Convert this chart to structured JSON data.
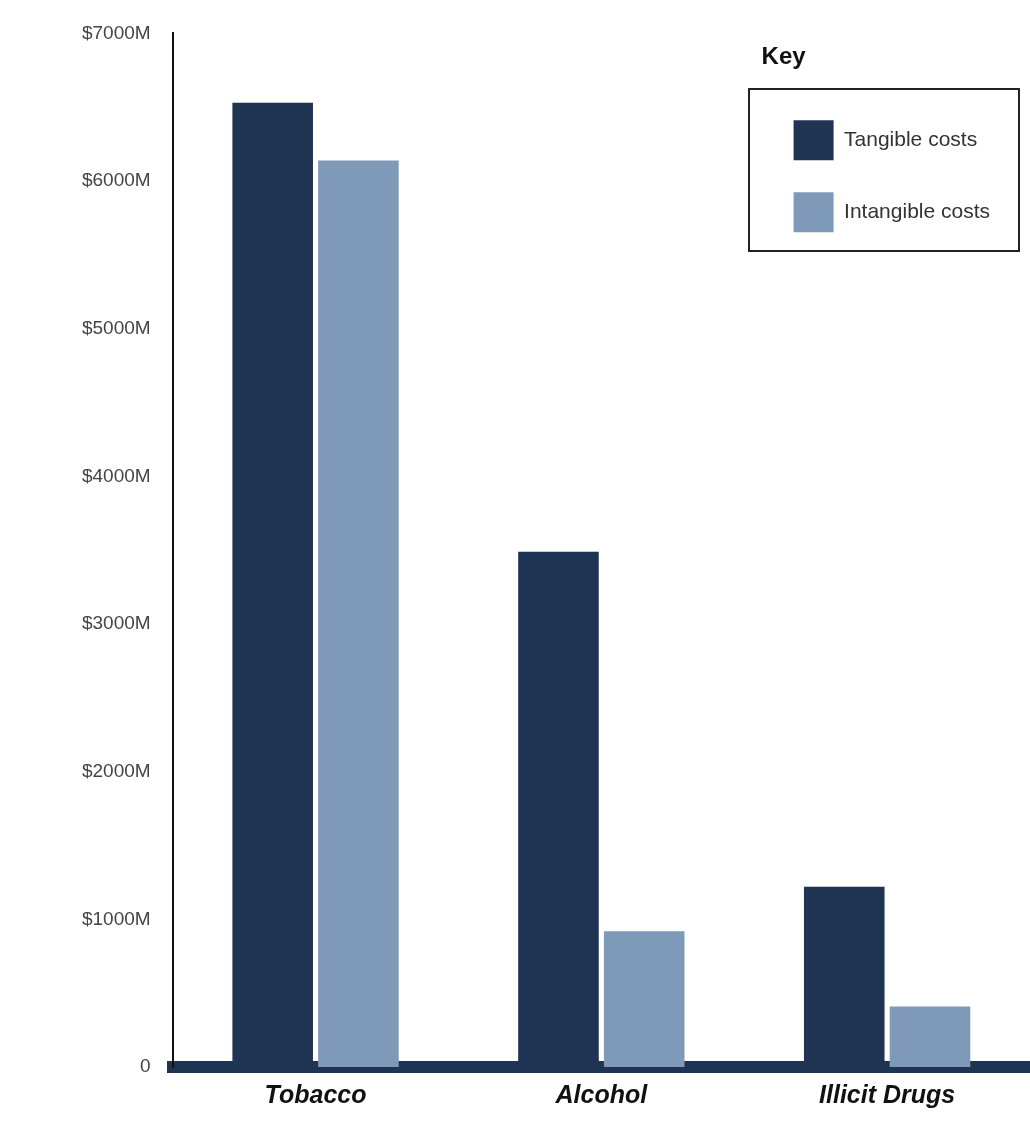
{
  "chart_data": {
    "type": "bar",
    "legend_title": "Key",
    "categories": [
      "Tobacco",
      "Alcohol",
      "Illicit Drugs"
    ],
    "series": [
      {
        "name": "Tangible costs",
        "color": "#1f3352",
        "values": [
          6530,
          3490,
          1220
        ]
      },
      {
        "name": "Intangible costs",
        "color": "#7f9ab8",
        "values": [
          6140,
          920,
          410
        ]
      }
    ],
    "ylim": [
      0,
      7000
    ],
    "yticks": [
      {
        "value": 0,
        "label": "0"
      },
      {
        "value": 1000,
        "label": "$1000M"
      },
      {
        "value": 2000,
        "label": "$2000M"
      },
      {
        "value": 3000,
        "label": "$3000M"
      },
      {
        "value": 4000,
        "label": "$4000M"
      },
      {
        "value": 5000,
        "label": "$5000M"
      },
      {
        "value": 6000,
        "label": "$6000M"
      },
      {
        "value": 7000,
        "label": "$7000M"
      }
    ],
    "grid": false,
    "legend": "top right"
  }
}
